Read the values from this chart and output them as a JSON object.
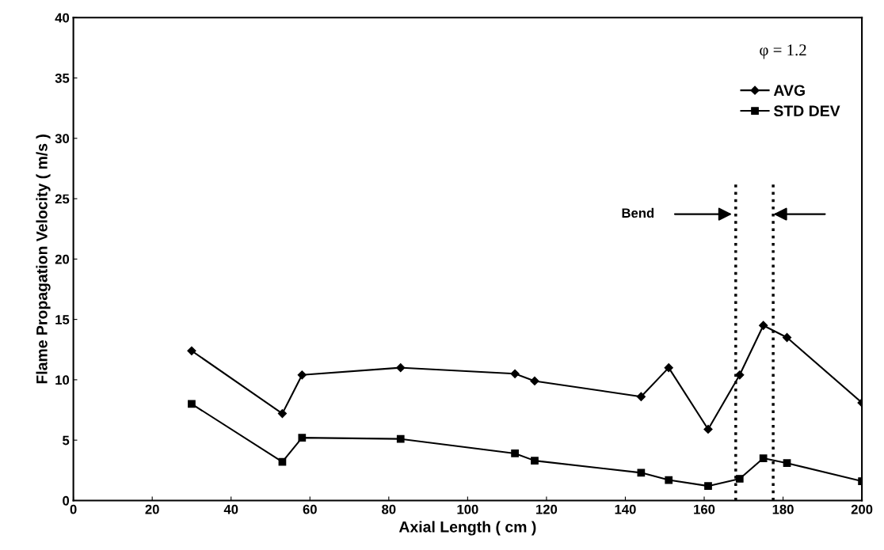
{
  "chart_data": {
    "type": "line",
    "xlabel": "Axial Length ( cm )",
    "ylabel": "Flame Propagation Velocity ( m/s )",
    "x": [
      30,
      53,
      58,
      83,
      112,
      117,
      144,
      151,
      161,
      169,
      175,
      181,
      200
    ],
    "series": [
      {
        "name": "AVG",
        "color": "#000000",
        "marker": "diamond",
        "values": [
          12.4,
          7.2,
          10.4,
          11.0,
          10.5,
          9.9,
          8.6,
          11.0,
          5.9,
          10.4,
          14.5,
          13.5,
          8.1
        ]
      },
      {
        "name": "STD DEV",
        "color": "#000000",
        "marker": "square",
        "values": [
          8.0,
          3.2,
          5.2,
          5.1,
          3.9,
          3.3,
          2.3,
          1.7,
          1.2,
          1.8,
          3.5,
          3.1,
          1.6
        ]
      }
    ],
    "xlim": [
      0,
      200
    ],
    "xticks": [
      0,
      20,
      40,
      60,
      80,
      100,
      120,
      140,
      160,
      180,
      200
    ],
    "ylim": [
      0,
      40
    ],
    "yticks": [
      0,
      5,
      10,
      15,
      20,
      25,
      30,
      35,
      40
    ],
    "ref_lines": [
      {
        "axis": "x",
        "value": 168,
        "line_style": "dotted",
        "color": "#000000"
      },
      {
        "axis": "x",
        "value": 177.5,
        "line_style": "dotted",
        "color": "#000000"
      }
    ],
    "annotations": [
      "φ = 1.2",
      "Bend"
    ],
    "grid": false,
    "legend": "top right",
    "line_style": "solid"
  }
}
